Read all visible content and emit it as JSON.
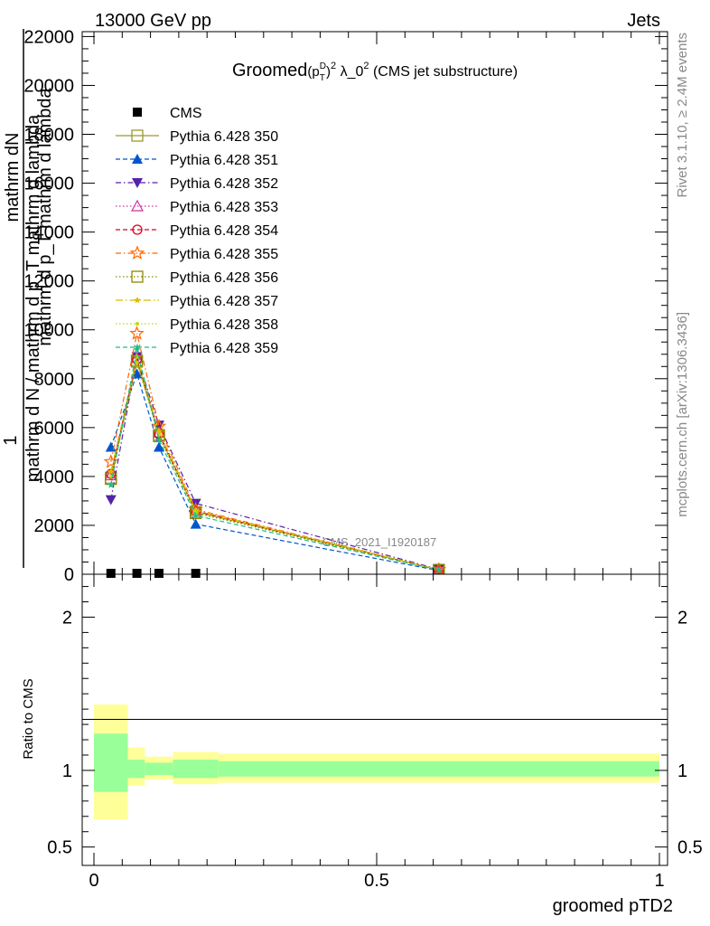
{
  "header": {
    "left": "13000 GeV pp",
    "right": "Jets"
  },
  "side_labels": {
    "rivet": "Rivet 3.1.10, ≥ 2.4M events",
    "mcplots": "mcplots.cern.ch [arXiv:1306.3436]"
  },
  "watermark": "CMS_2021_I1920187",
  "chart_data": {
    "type": "line",
    "title": "Groomed(p_T^D)^2 λ_0^2 (CMS jet substructure)",
    "title_parts": {
      "main": "Groomed",
      "paren_open": "(p",
      "sup_d": "D",
      "sub_t": "T",
      "paren_close": ")",
      "sup_2a": "2",
      "lambda": " λ_0",
      "sup_2b": "2",
      "suffix": " (CMS jet substructure)"
    },
    "xlabel": "groomed pTD2",
    "ylabel_parts": [
      "mathrm dN",
      "1",
      "mathrm d N / mathrm d p_T mathrm d lambda",
      "mathrm d p_T mathrm d lambda"
    ],
    "ratio_ylabel": "Ratio to CMS",
    "xlim": [
      0,
      1
    ],
    "ylim": [
      0,
      22200
    ],
    "ratio_ylim": [
      0.38,
      2.28
    ],
    "x_ticks": [
      0,
      0.5,
      1
    ],
    "x_tick_labels": [
      "0",
      "0.5",
      "1"
    ],
    "y_ticks": [
      0,
      2000,
      4000,
      6000,
      8000,
      10000,
      12000,
      14000,
      16000,
      18000,
      20000,
      22000
    ],
    "y_tick_labels": [
      "0",
      "2000",
      "4000",
      "6000",
      "8000",
      "10000",
      "12000",
      "14000",
      "16000",
      "18000",
      "20000",
      "22000"
    ],
    "ratio_ticks": [
      0.5,
      1,
      2
    ],
    "ratio_tick_labels": [
      "0.5",
      "1",
      "2"
    ],
    "x": [
      0.03,
      0.076,
      0.115,
      0.18,
      0.61
    ],
    "bin_edges": [
      0,
      0.06,
      0.09,
      0.14,
      0.22,
      1.0
    ],
    "cms": {
      "name": "CMS",
      "values": [
        0,
        0,
        0,
        0,
        0
      ]
    },
    "ratio_bands": {
      "inner": [
        [
          0.86,
          1.24
        ],
        [
          0.95,
          1.07
        ],
        [
          0.97,
          1.05
        ],
        [
          0.95,
          1.07
        ],
        [
          0.96,
          1.06
        ]
      ],
      "outer": [
        [
          0.68,
          1.43
        ],
        [
          0.9,
          1.15
        ],
        [
          0.94,
          1.09
        ],
        [
          0.91,
          1.12
        ],
        [
          0.92,
          1.11
        ]
      ]
    },
    "series": [
      {
        "name": "Pythia 6.428 350",
        "color": "#999933",
        "marker": "square-open",
        "dash": "",
        "values": [
          3950,
          8750,
          5700,
          2550,
          180
        ]
      },
      {
        "name": "Pythia 6.428 351",
        "color": "#0055cc",
        "marker": "triangle-up-filled",
        "dash": "5,3",
        "values": [
          5200,
          8200,
          5200,
          2050,
          150
        ]
      },
      {
        "name": "Pythia 6.428 352",
        "color": "#5522aa",
        "marker": "triangle-down-filled",
        "dash": "6,3,1.5,3",
        "values": [
          3050,
          8900,
          6100,
          2900,
          200
        ]
      },
      {
        "name": "Pythia 6.428 353",
        "color": "#cc3399",
        "marker": "triangle-up-open",
        "dash": "1.5,2.5",
        "values": [
          4050,
          8850,
          5800,
          2600,
          185
        ]
      },
      {
        "name": "Pythia 6.428 354",
        "color": "#dd0022",
        "marker": "circle-open",
        "dash": "5,3",
        "values": [
          4100,
          8800,
          5750,
          2580,
          182
        ]
      },
      {
        "name": "Pythia 6.428 355",
        "color": "#ff6600",
        "marker": "star-open",
        "dash": "6,3,1.5,3",
        "values": [
          4600,
          9850,
          6050,
          2650,
          190
        ]
      },
      {
        "name": "Pythia 6.428 356",
        "color": "#888800",
        "marker": "square-open",
        "dash": "1.5,2.5",
        "values": [
          3900,
          8700,
          5650,
          2500,
          178
        ]
      },
      {
        "name": "Pythia 6.428 357",
        "color": "#ddbb00",
        "marker": "star-small",
        "dash": "8,3,1.5,3",
        "values": [
          4200,
          8900,
          5850,
          2620,
          186
        ]
      },
      {
        "name": "Pythia 6.428 358",
        "color": "#bbdd00",
        "marker": "dot",
        "dash": "1.5,2.5",
        "values": [
          4000,
          8650,
          5700,
          2560,
          183
        ]
      },
      {
        "name": "Pythia 6.428 359",
        "color": "#22bb88",
        "marker": "star-small",
        "dash": "5,3",
        "values": [
          3650,
          9200,
          5500,
          2400,
          170
        ]
      }
    ]
  }
}
